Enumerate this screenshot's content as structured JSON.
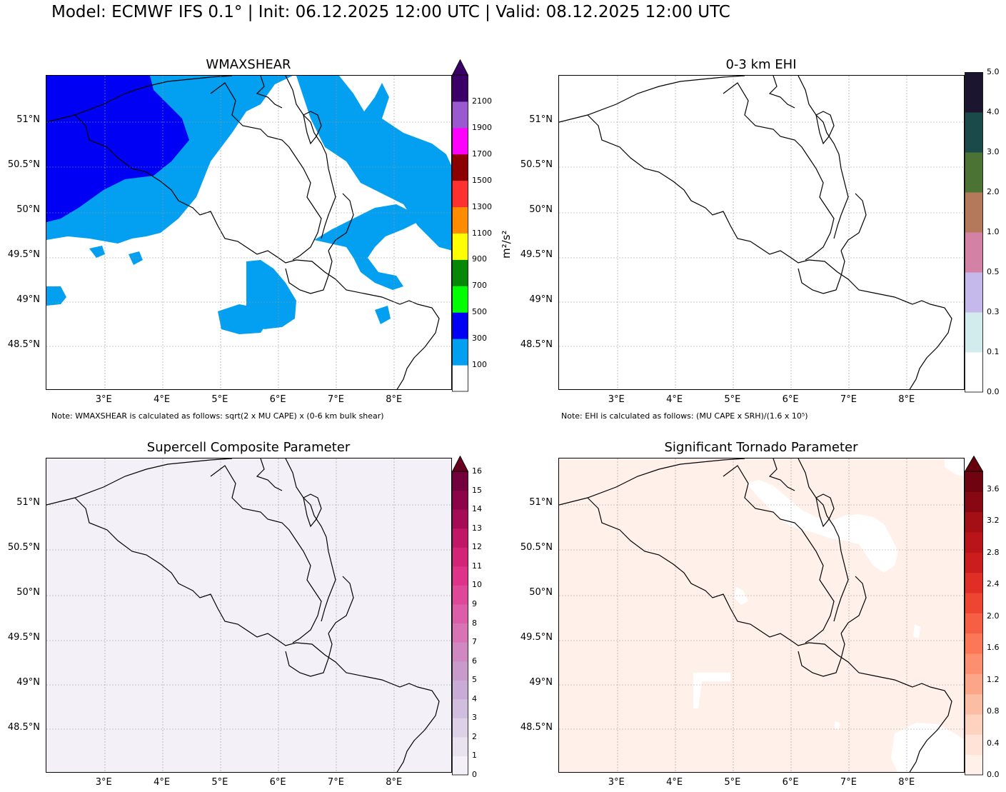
{
  "title": "Model: ECMWF IFS 0.1° | Init: 06.12.2025 12:00 UTC | Valid: 08.12.2025 12:00 UTC",
  "axes": {
    "lat_labels": [
      "51°N",
      "50.5°N",
      "50°N",
      "49.5°N",
      "49°N",
      "48.5°N"
    ],
    "lat_values": [
      51,
      50.5,
      50,
      49.5,
      49,
      48.5
    ],
    "lon_labels": [
      "3°E",
      "4°E",
      "5°E",
      "6°E",
      "7°E",
      "8°E"
    ],
    "lon_values": [
      3,
      4,
      5,
      6,
      7,
      8
    ],
    "lat_range": [
      48.0,
      51.5
    ],
    "lon_range": [
      2.0,
      9.0
    ]
  },
  "panels": [
    {
      "id": "wmaxshear",
      "title": "WMAXSHEAR",
      "note": "Note: WMAXSHEAR is calculated as follows: sqrt(2 x MU CAPE) x (0-6 km bulk shear)",
      "colorbar": {
        "unit": "m²/s²",
        "extend": "max",
        "labels": [
          "100",
          "300",
          "500",
          "700",
          "900",
          "1100",
          "1300",
          "1500",
          "1700",
          "1900",
          "2100"
        ],
        "colors": [
          "#ffffff",
          "#039ff0",
          "#0000f5",
          "#00ff00",
          "#078707",
          "#ffff00",
          "#ff8c00",
          "#ff3030",
          "#8b0000",
          "#ff00ff",
          "#9b59d0",
          "#3b0068"
        ]
      }
    },
    {
      "id": "ehi",
      "title": "0-3 km EHI",
      "note": "Note: EHI is calculated as follows: (MU CAPE x SRH)/(1.6 x 10⁵)",
      "colorbar": {
        "unit": "",
        "extend": "none",
        "labels": [
          "0.0",
          "0.1",
          "0.3",
          "0.5",
          "1.0",
          "2.0",
          "3.0",
          "4.0",
          "5.0"
        ],
        "colors": [
          "#ffffff",
          "#d2ecee",
          "#c5b8ea",
          "#d382a6",
          "#b4785a",
          "#4b7434",
          "#1a4a4a",
          "#1b1530"
        ]
      }
    },
    {
      "id": "scp",
      "title": "Supercell Composite Parameter",
      "note": "",
      "colorbar": {
        "unit": "",
        "extend": "max",
        "labels": [
          "0",
          "1",
          "2",
          "3",
          "4",
          "5",
          "6",
          "7",
          "8",
          "9",
          "10",
          "11",
          "12",
          "13",
          "14",
          "15",
          "16"
        ],
        "colors": [
          "#f3f0f7",
          "#e9e3f0",
          "#ddd1e8",
          "#d1bedf",
          "#c8acd5",
          "#c89bcb",
          "#cf88c0",
          "#d873b4",
          "#dd5ea8",
          "#df4899",
          "#de3388",
          "#d42477",
          "#c01766",
          "#a60c56",
          "#8d0449",
          "#72013d"
        ],
        "over": "#67001f"
      }
    },
    {
      "id": "stp",
      "title": "Significant Tornado Parameter",
      "note": "",
      "colorbar": {
        "unit": "",
        "extend": "max",
        "labels": [
          "0.0",
          "0.4",
          "0.8",
          "1.2",
          "1.6",
          "2.0",
          "2.4",
          "2.8",
          "3.2",
          "3.6"
        ],
        "colors": [
          "#fff0e9",
          "#fee3d6",
          "#fdd2bf",
          "#fcbda5",
          "#fca689",
          "#fc8f6f",
          "#fb7757",
          "#f75f44",
          "#ee4533",
          "#e02e26",
          "#cb1c1e",
          "#b91419",
          "#a30f15",
          "#870812",
          "#6f0310"
        ],
        "over": "#67000d"
      }
    }
  ]
}
